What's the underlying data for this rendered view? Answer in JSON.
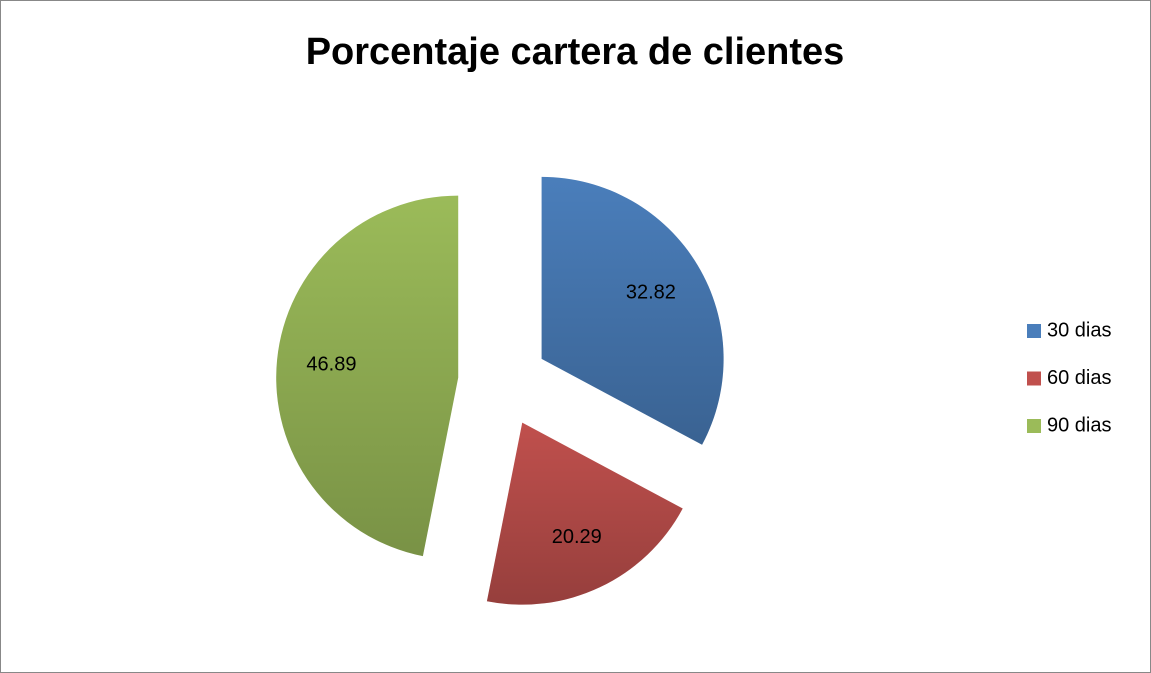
{
  "chart_data": {
    "type": "pie",
    "title": "Porcentaje cartera de clientes",
    "categories": [
      "30 dias",
      "60 dias",
      "90 dias"
    ],
    "values": [
      32.82,
      20.29,
      46.89
    ],
    "colors": [
      "#4a7ebb",
      "#c0504d",
      "#9bbb59"
    ],
    "exploded": true,
    "legend": "right"
  }
}
